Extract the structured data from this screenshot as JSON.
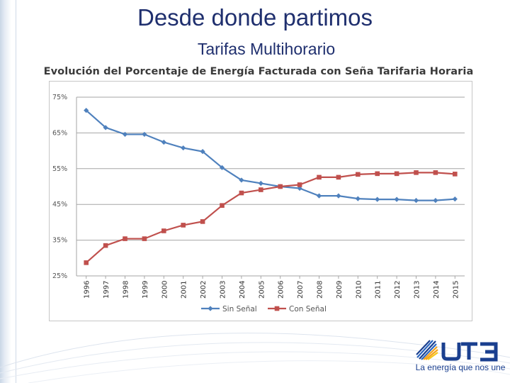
{
  "slide": {
    "title": "Desde donde partimos",
    "subtitle": "Tarifas Multihorario"
  },
  "colors": {
    "title": "#1f2f6e",
    "sin_senal": "#4f81bd",
    "con_senal": "#c0504d",
    "logo_blue": "#1a3f8f",
    "logo_orange": "#f5a31a"
  },
  "chart_data": {
    "type": "line",
    "title": "Evolución del Porcentaje de Energía Facturada con Seña Tarifaria Horaria",
    "xlabel": "",
    "ylabel": "",
    "categories": [
      "1996",
      "1997",
      "1998",
      "1999",
      "2000",
      "2001",
      "2002",
      "2003",
      "2004",
      "2005",
      "2006",
      "2007",
      "2008",
      "2009",
      "2010",
      "2011",
      "2012",
      "2013",
      "2014",
      "2015"
    ],
    "y_ticks": [
      "75%",
      "65%",
      "55%",
      "45%",
      "35%",
      "25%"
    ],
    "ylim": [
      25,
      75
    ],
    "grid": true,
    "legend_position": "bottom",
    "series": [
      {
        "name": "Sin Señal",
        "marker": "diamond",
        "values": [
          71.3,
          66.5,
          64.6,
          64.6,
          62.4,
          60.8,
          59.8,
          55.3,
          51.8,
          50.9,
          50.0,
          49.5,
          47.4,
          47.4,
          46.6,
          46.4,
          46.4,
          46.1,
          46.1,
          46.5
        ]
      },
      {
        "name": "Con Señal",
        "marker": "square",
        "values": [
          28.7,
          33.5,
          35.4,
          35.4,
          37.6,
          39.2,
          40.2,
          44.7,
          48.2,
          49.1,
          50.0,
          50.5,
          52.6,
          52.6,
          53.4,
          53.6,
          53.6,
          53.9,
          53.9,
          53.5
        ]
      }
    ]
  },
  "logo": {
    "text": "UTE",
    "tagline": "La energía que nos une"
  }
}
